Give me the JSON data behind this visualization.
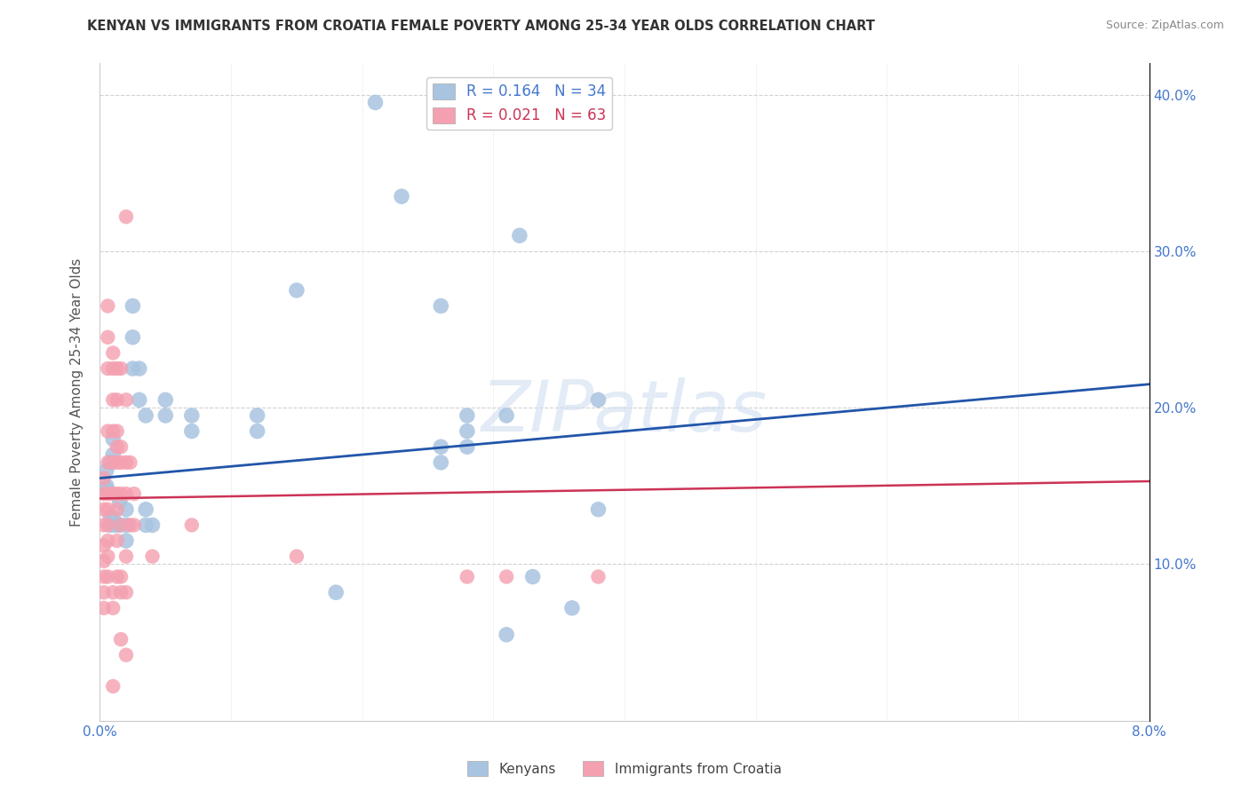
{
  "title": "KENYAN VS IMMIGRANTS FROM CROATIA FEMALE POVERTY AMONG 25-34 YEAR OLDS CORRELATION CHART",
  "source": "Source: ZipAtlas.com",
  "ylabel": "Female Poverty Among 25-34 Year Olds",
  "xlim": [
    0.0,
    0.08
  ],
  "ylim": [
    0.0,
    0.42
  ],
  "xticks": [
    0.0,
    0.01,
    0.02,
    0.03,
    0.04,
    0.05,
    0.06,
    0.07,
    0.08
  ],
  "yticks": [
    0.0,
    0.1,
    0.2,
    0.3,
    0.4
  ],
  "blue_color": "#a8c4e0",
  "pink_color": "#f4a0b0",
  "line_blue": "#2255aa",
  "line_pink": "#cc3355",
  "watermark_color": "#d0dff0",
  "kenyans": [
    [
      0.0005,
      0.16
    ],
    [
      0.0005,
      0.15
    ],
    [
      0.0005,
      0.148
    ],
    [
      0.0008,
      0.165
    ],
    [
      0.0008,
      0.13
    ],
    [
      0.0008,
      0.125
    ],
    [
      0.001,
      0.18
    ],
    [
      0.001,
      0.17
    ],
    [
      0.001,
      0.13
    ],
    [
      0.0012,
      0.125
    ],
    [
      0.0015,
      0.14
    ],
    [
      0.0015,
      0.125
    ],
    [
      0.002,
      0.135
    ],
    [
      0.002,
      0.125
    ],
    [
      0.002,
      0.115
    ],
    [
      0.0025,
      0.265
    ],
    [
      0.0025,
      0.245
    ],
    [
      0.0025,
      0.225
    ],
    [
      0.003,
      0.225
    ],
    [
      0.003,
      0.205
    ],
    [
      0.0035,
      0.195
    ],
    [
      0.0035,
      0.135
    ],
    [
      0.0035,
      0.125
    ],
    [
      0.004,
      0.125
    ],
    [
      0.005,
      0.205
    ],
    [
      0.005,
      0.195
    ],
    [
      0.007,
      0.195
    ],
    [
      0.007,
      0.185
    ],
    [
      0.012,
      0.195
    ],
    [
      0.012,
      0.185
    ],
    [
      0.015,
      0.275
    ],
    [
      0.018,
      0.082
    ],
    [
      0.021,
      0.395
    ],
    [
      0.023,
      0.335
    ],
    [
      0.026,
      0.265
    ],
    [
      0.026,
      0.175
    ],
    [
      0.026,
      0.165
    ],
    [
      0.028,
      0.195
    ],
    [
      0.028,
      0.185
    ],
    [
      0.028,
      0.175
    ],
    [
      0.031,
      0.195
    ],
    [
      0.031,
      0.055
    ],
    [
      0.032,
      0.31
    ],
    [
      0.033,
      0.092
    ],
    [
      0.036,
      0.072
    ],
    [
      0.038,
      0.205
    ],
    [
      0.038,
      0.135
    ]
  ],
  "croatians": [
    [
      0.0003,
      0.155
    ],
    [
      0.0003,
      0.145
    ],
    [
      0.0003,
      0.135
    ],
    [
      0.0003,
      0.125
    ],
    [
      0.0003,
      0.112
    ],
    [
      0.0003,
      0.102
    ],
    [
      0.0003,
      0.092
    ],
    [
      0.0003,
      0.082
    ],
    [
      0.0003,
      0.072
    ],
    [
      0.0006,
      0.265
    ],
    [
      0.0006,
      0.245
    ],
    [
      0.0006,
      0.225
    ],
    [
      0.0006,
      0.185
    ],
    [
      0.0006,
      0.165
    ],
    [
      0.0006,
      0.145
    ],
    [
      0.0006,
      0.135
    ],
    [
      0.0006,
      0.125
    ],
    [
      0.0006,
      0.115
    ],
    [
      0.0006,
      0.105
    ],
    [
      0.0006,
      0.092
    ],
    [
      0.001,
      0.235
    ],
    [
      0.001,
      0.225
    ],
    [
      0.001,
      0.205
    ],
    [
      0.001,
      0.185
    ],
    [
      0.001,
      0.165
    ],
    [
      0.001,
      0.145
    ],
    [
      0.001,
      0.082
    ],
    [
      0.001,
      0.072
    ],
    [
      0.0013,
      0.225
    ],
    [
      0.0013,
      0.205
    ],
    [
      0.0013,
      0.185
    ],
    [
      0.0013,
      0.175
    ],
    [
      0.0013,
      0.165
    ],
    [
      0.0013,
      0.145
    ],
    [
      0.0013,
      0.135
    ],
    [
      0.0013,
      0.115
    ],
    [
      0.0013,
      0.092
    ],
    [
      0.0016,
      0.225
    ],
    [
      0.0016,
      0.175
    ],
    [
      0.0016,
      0.165
    ],
    [
      0.0016,
      0.145
    ],
    [
      0.0016,
      0.125
    ],
    [
      0.0016,
      0.092
    ],
    [
      0.0016,
      0.082
    ],
    [
      0.0016,
      0.052
    ],
    [
      0.002,
      0.322
    ],
    [
      0.002,
      0.205
    ],
    [
      0.002,
      0.165
    ],
    [
      0.002,
      0.145
    ],
    [
      0.002,
      0.105
    ],
    [
      0.002,
      0.082
    ],
    [
      0.002,
      0.042
    ],
    [
      0.0023,
      0.165
    ],
    [
      0.0023,
      0.125
    ],
    [
      0.0026,
      0.145
    ],
    [
      0.0026,
      0.125
    ],
    [
      0.004,
      0.105
    ],
    [
      0.007,
      0.125
    ],
    [
      0.015,
      0.105
    ],
    [
      0.028,
      0.092
    ],
    [
      0.031,
      0.092
    ],
    [
      0.038,
      0.092
    ],
    [
      0.001,
      0.022
    ]
  ],
  "blue_line_x": [
    0.0,
    0.08
  ],
  "blue_line_y": [
    0.155,
    0.215
  ],
  "pink_line_x": [
    0.0,
    0.08
  ],
  "pink_line_y": [
    0.142,
    0.153
  ]
}
